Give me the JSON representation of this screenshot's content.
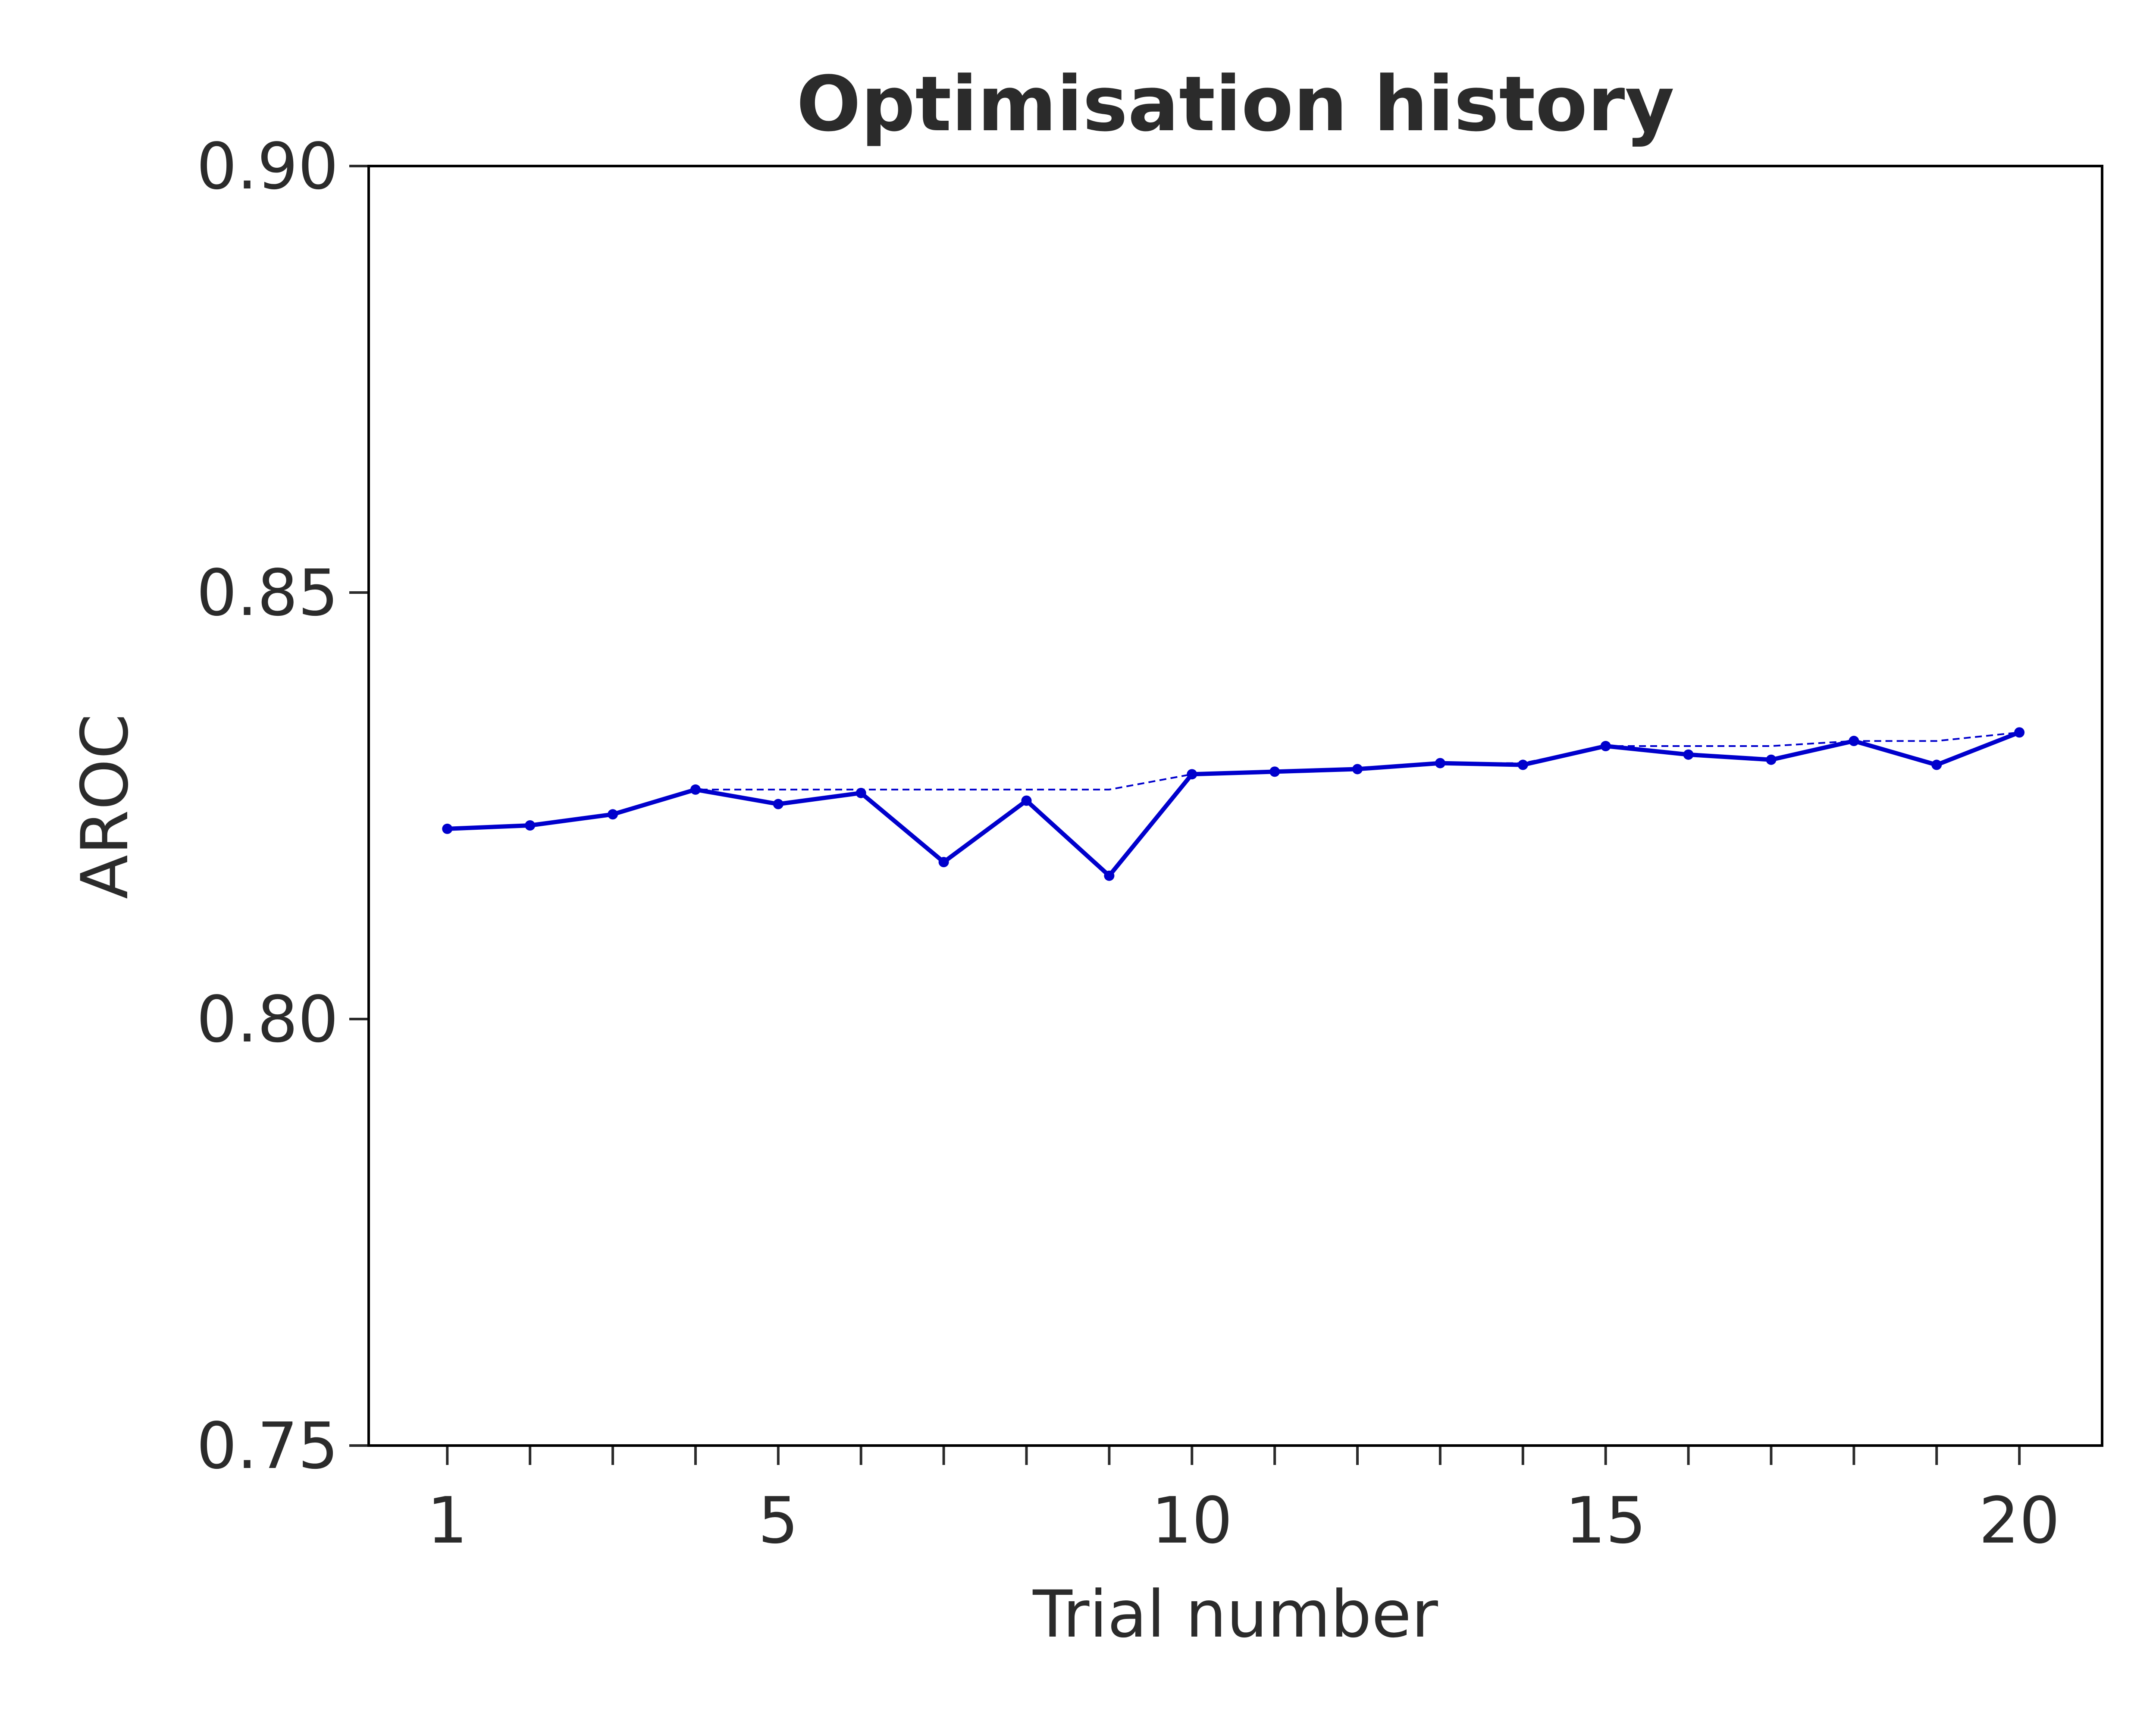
{
  "chart_data": {
    "type": "line",
    "title": "Optimisation history",
    "xlabel": "Trial number",
    "ylabel": "AROC",
    "xlim": [
      0.05,
      21
    ],
    "ylim": [
      0.75,
      0.9
    ],
    "xticks": [
      1,
      5,
      10,
      15,
      20
    ],
    "xticks_minor": [
      1,
      2,
      3,
      4,
      5,
      6,
      7,
      8,
      9,
      10,
      11,
      12,
      13,
      14,
      15,
      16,
      17,
      18,
      19,
      20
    ],
    "yticks": [
      0.75,
      0.8,
      0.85,
      0.9
    ],
    "ytick_labels": [
      "0.75",
      "0.80",
      "0.85",
      "0.90"
    ],
    "grid": false,
    "series": [
      {
        "style": "solid-with-markers",
        "color": "#0000cc",
        "x": [
          1,
          2,
          3,
          4,
          5,
          6,
          7,
          8,
          9,
          10,
          11,
          12,
          13,
          14,
          15,
          16,
          17,
          18,
          19,
          20
        ],
        "y": [
          0.8223,
          0.8227,
          0.824,
          0.8269,
          0.8252,
          0.8265,
          0.8184,
          0.8256,
          0.8168,
          0.8287,
          0.829,
          0.8293,
          0.83,
          0.8298,
          0.832,
          0.831,
          0.8304,
          0.8326,
          0.8298,
          0.8336
        ]
      },
      {
        "style": "dashed",
        "color": "#0000cc",
        "x": [
          1,
          2,
          3,
          4,
          5,
          6,
          7,
          8,
          9,
          10,
          11,
          12,
          13,
          14,
          15,
          16,
          17,
          18,
          19,
          20
        ],
        "y": [
          0.8223,
          0.8227,
          0.824,
          0.8269,
          0.8269,
          0.8269,
          0.8269,
          0.8269,
          0.8269,
          0.8287,
          0.829,
          0.8293,
          0.83,
          0.83,
          0.832,
          0.832,
          0.832,
          0.8326,
          0.8326,
          0.8336
        ]
      }
    ]
  }
}
